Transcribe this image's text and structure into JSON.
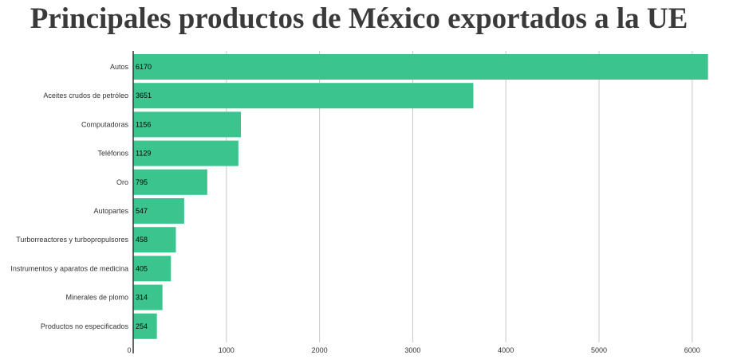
{
  "chart_data": {
    "type": "bar",
    "orientation": "horizontal",
    "title": "Principales productos de México exportados a la UE",
    "categories": [
      "Autos",
      "Aceites crudos de petróleo",
      "Computadoras",
      "Teléfonos",
      "Oro",
      "Autopartes",
      "Turborreactores y turbopropulsores",
      "Instrumentos y aparatos de medicina",
      "Minerales de plomo",
      "Productos no especificados"
    ],
    "values": [
      6170,
      3651,
      1156,
      1129,
      795,
      547,
      458,
      405,
      314,
      254
    ],
    "value_labels": [
      "6170",
      "3651",
      "1156",
      "1129",
      "795",
      "547",
      "458",
      "405",
      "314",
      "254"
    ],
    "xticks": [
      0,
      1000,
      2000,
      3000,
      4000,
      5000,
      6000
    ],
    "xtick_labels": [
      "0",
      "1000",
      "2000",
      "3000",
      "4000",
      "5000",
      "6000"
    ],
    "xlim": [
      0,
      6250
    ],
    "grid": true,
    "colors": {
      "bar": "#3cc48f",
      "grid": "#c8c8c8",
      "axis": "#333333"
    }
  }
}
